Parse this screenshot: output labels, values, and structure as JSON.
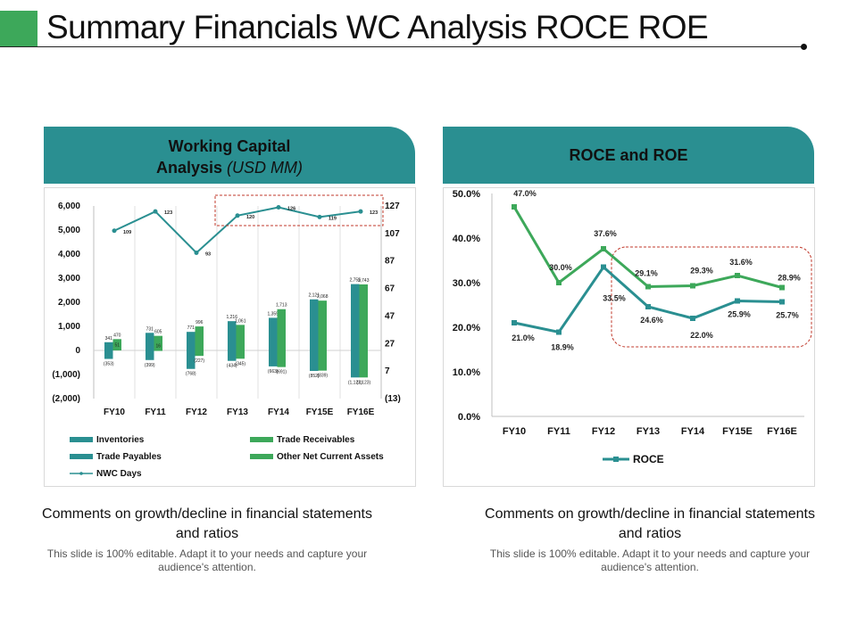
{
  "page": {
    "title": "Summary Financials WC Analysis ROCE ROE",
    "accent_color": "#3da85a",
    "header_color": "#2a8f91"
  },
  "left_panel": {
    "heading": "Working Capital",
    "heading2": "Analysis",
    "heading_unit": "(USD MM)"
  },
  "right_panel": {
    "heading": "ROCE and ROE"
  },
  "comments": [
    {
      "title": "Comments on growth/decline in financial statements and ratios",
      "body": "This slide is 100% editable. Adapt it to your needs and capture your audience's attention."
    },
    {
      "title": "Comments on growth/decline in financial statements and ratios",
      "body": "This slide is 100% editable. Adapt it to your needs and capture your audience's attention."
    }
  ],
  "chart_data": [
    {
      "type": "bar",
      "categories": [
        "FY10",
        "FY11",
        "FY12",
        "FY13",
        "FY14",
        "FY15E",
        "FY16E"
      ],
      "y_ticks": [
        "6,000",
        "5,000",
        "4,000",
        "3,000",
        "2,000",
        "1,000",
        "0",
        "(1,000)",
        "(2,000)"
      ],
      "ylim": [
        -2000,
        6000
      ],
      "y2_ticks": [
        "127",
        "107",
        "87",
        "67",
        "47",
        "27",
        "7",
        "(13)"
      ],
      "y2lim": [
        -13,
        127
      ],
      "series": [
        {
          "name": "Inventories",
          "color": "#2a8f91",
          "values": [
            341,
            731,
            771,
            1216,
            1355,
            2121,
            2755
          ],
          "labels": [
            "341",
            "731",
            "771",
            "1,216",
            "1,355",
            "2,121",
            "2,755"
          ]
        },
        {
          "name": "Trade Receivables",
          "color": "#3da85a",
          "values": [
            470,
            605,
            996,
            1061,
            1713,
            2068,
            2743
          ],
          "labels": [
            "470",
            "605",
            "996",
            "1,061",
            "1,713",
            "2,068",
            "2,743"
          ]
        },
        {
          "name": "Trade Payables",
          "color": "#2a8f91",
          "values": [
            -353,
            -399,
            -768,
            -434,
            -663,
            -852,
            -1123
          ],
          "labels": [
            "(353)",
            "(399)",
            "(768)",
            "(434)",
            "(663)",
            "(852)",
            "(1,123)"
          ]
        },
        {
          "name": "Other Net Current Assets",
          "color": "#3da85a",
          "values": [
            51,
            16,
            -227,
            -345,
            -691,
            -839,
            -1123
          ],
          "labels": [
            "51",
            "16",
            "(227)",
            "(345)",
            "(691)",
            "(839)",
            "(1,123)"
          ]
        }
      ],
      "line_series": {
        "name": "NWC Days",
        "color": "#2a8f91",
        "values": [
          109,
          123,
          93,
          120,
          126,
          119,
          123
        ],
        "labels": [
          "109",
          "123",
          "93",
          "120",
          "126",
          "119",
          "123"
        ],
        "axis": "secondary"
      },
      "legend": [
        "Inventories",
        "Trade Receivables",
        "Trade Payables",
        "Other Net Current Assets",
        "NWC Days"
      ],
      "legend_placement": "bottom",
      "highlight": {
        "from_category": "FY13",
        "to_category": "FY16E",
        "style": "dashed-box"
      }
    },
    {
      "type": "line",
      "categories": [
        "FY10",
        "FY11",
        "FY12",
        "FY13",
        "FY14",
        "FY15E",
        "FY16E"
      ],
      "y_ticks": [
        "50.0%",
        "40.0%",
        "30.0%",
        "20.0%",
        "10.0%",
        "0.0%"
      ],
      "ylim": [
        0,
        50
      ],
      "series": [
        {
          "name": "ROE",
          "color": "#3da85a",
          "values": [
            47.0,
            30.0,
            37.6,
            29.1,
            29.3,
            31.6,
            28.9
          ],
          "labels": [
            "47.0%",
            "30.0%",
            "37.6%",
            "29.1%",
            "29.3%",
            "31.6%",
            "28.9%"
          ]
        },
        {
          "name": "ROCE",
          "color": "#2a8f91",
          "values": [
            21.0,
            18.9,
            33.5,
            24.6,
            22.0,
            25.9,
            25.7
          ],
          "labels": [
            "21.0%",
            "18.9%",
            "33.5%",
            "24.6%",
            "22.0%",
            "25.9%",
            "25.7%"
          ]
        }
      ],
      "legend": [
        "ROCE"
      ],
      "legend_placement": "bottom",
      "highlight": {
        "from_category": "FY13",
        "to_category": "FY16E",
        "style": "dashed-rounded-box"
      }
    }
  ]
}
